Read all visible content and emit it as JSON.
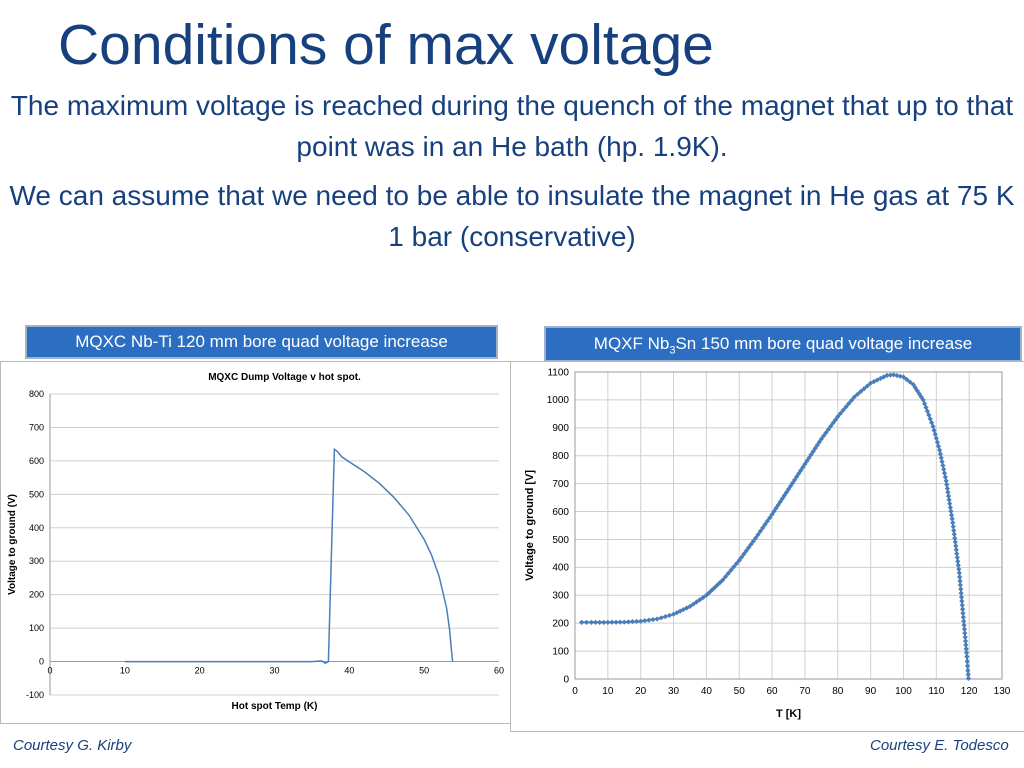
{
  "slide": {
    "title": "Conditions of max voltage",
    "paragraph1": "The maximum voltage is reached during the quench of the magnet that up to that point was in an He bath (hp. 1.9K).",
    "paragraph2": "We can assume that we need to be able to insulate the magnet in He gas at 75 K 1 bar (conservative)",
    "label_left": "MQXC Nb-Ti 120 mm bore quad voltage increase",
    "label_right_parts": [
      "MQXF Nb",
      "3",
      "Sn 150 mm bore quad voltage increase"
    ],
    "courtesy_left": "Courtesy G. Kirby",
    "courtesy_right": "Courtesy E. Todesco"
  },
  "colors": {
    "title": "#17407e",
    "label_bg": "#2c6fc2",
    "series": "#4a7ebb"
  },
  "chart_data": [
    {
      "type": "line",
      "title": "MQXC Dump Voltage  v   hot spot.",
      "xlabel": "Hot spot Temp (K)",
      "ylabel": "Voltage to ground (V)",
      "xlim": [
        0,
        60
      ],
      "ylim": [
        -100,
        800
      ],
      "xticks": [
        0,
        10,
        20,
        30,
        40,
        50,
        60
      ],
      "yticks": [
        -100,
        0,
        100,
        200,
        300,
        400,
        500,
        600,
        700,
        800
      ],
      "grid": "horizontal",
      "series": [
        {
          "markers": false,
          "x": [
            10,
            20,
            30,
            35,
            36.3,
            36.8,
            37.2,
            37.6,
            38.0,
            38.4,
            39,
            40,
            42,
            44,
            46,
            48,
            50,
            51,
            52,
            53,
            53.4,
            53.6,
            53.8
          ],
          "y": [
            0,
            0,
            0,
            0,
            2,
            -5,
            0,
            320,
            635,
            628,
            612,
            597,
            568,
            533,
            490,
            437,
            365,
            318,
            255,
            160,
            95,
            45,
            0
          ]
        }
      ]
    },
    {
      "type": "scatter",
      "title": "",
      "xlabel": "T [K]",
      "ylabel": "Voltage to ground [V]",
      "xlim": [
        0,
        130
      ],
      "ylim": [
        0,
        1100
      ],
      "xticks": [
        0,
        10,
        20,
        30,
        40,
        50,
        60,
        70,
        80,
        90,
        100,
        110,
        120,
        130
      ],
      "yticks": [
        0,
        100,
        200,
        300,
        400,
        500,
        600,
        700,
        800,
        900,
        1000,
        1100
      ],
      "grid": "both",
      "series": [
        {
          "markers": true,
          "x": [
            2,
            5,
            10,
            15,
            20,
            25,
            30,
            35,
            40,
            45,
            50,
            55,
            60,
            65,
            70,
            75,
            80,
            85,
            90,
            95,
            97,
            100,
            103,
            106,
            109,
            111,
            113,
            115,
            117,
            118,
            118.8,
            119.3,
            119.6,
            119.8
          ],
          "y": [
            203,
            203,
            203,
            204,
            207,
            215,
            232,
            260,
            300,
            355,
            425,
            505,
            590,
            680,
            770,
            860,
            940,
            1010,
            1060,
            1088,
            1090,
            1082,
            1055,
            1000,
            905,
            820,
            710,
            560,
            380,
            250,
            150,
            80,
            30,
            2
          ]
        }
      ]
    }
  ]
}
